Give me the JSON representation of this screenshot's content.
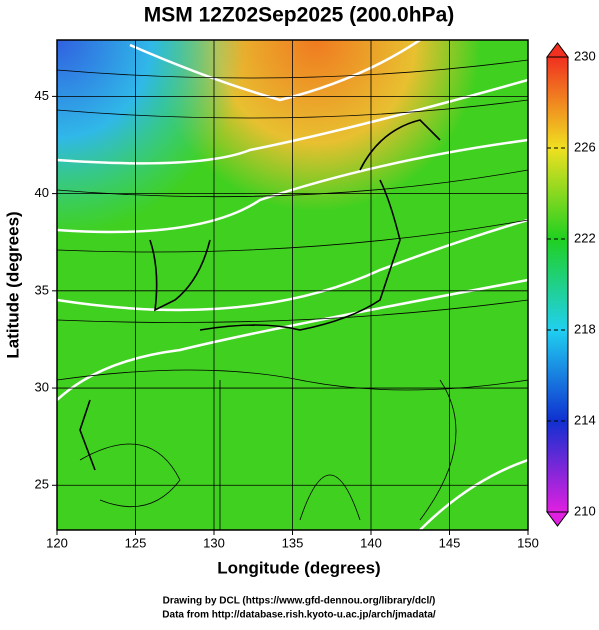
{
  "title": "MSM 12Z02Sep2025 (200.0hPa)",
  "x_axis": {
    "label": "Longitude (degrees)",
    "lim": [
      120,
      150
    ],
    "ticks": [
      120,
      125,
      130,
      135,
      140,
      145,
      150
    ]
  },
  "y_axis": {
    "label": "Latitude  (degrees)",
    "lim": [
      22.7,
      47.9
    ],
    "ticks": [
      25,
      30,
      35,
      40,
      45
    ]
  },
  "colorbar": {
    "lim": [
      210,
      230
    ],
    "ticks": [
      210,
      214,
      218,
      222,
      226,
      230
    ],
    "colors": [
      "#e020e0",
      "#1030d0",
      "#20d0f0",
      "#20d020",
      "#f0e020",
      "#f03020"
    ]
  },
  "footer": [
    "Drawing by DCL (https://www.gfd-dennou.org/library/dcl/)",
    "Data from http://database.rish.kyoto-u.ac.jp/arch/jmadata/"
  ]
}
